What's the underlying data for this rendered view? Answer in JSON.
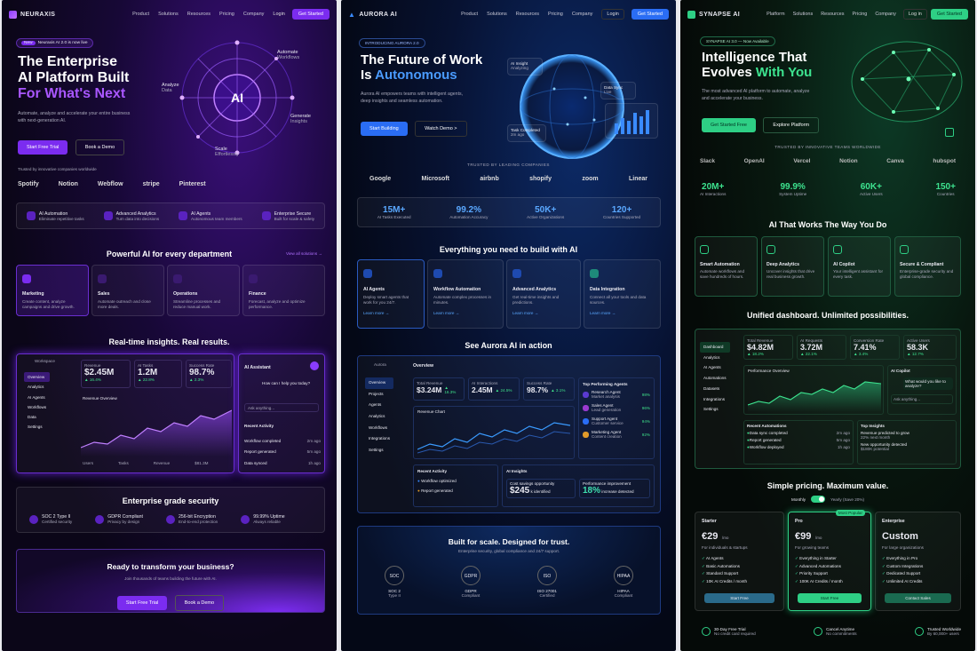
{
  "p1": {
    "brand": "NEURAXIS",
    "nav": [
      "Product",
      "Solutions",
      "Resources",
      "Pricing",
      "Company"
    ],
    "login": "Login",
    "cta": "Get Started",
    "badge_new": "New",
    "badge_text": "Neuraxis AI 2.0 is now live",
    "h1a": "The Enterprise",
    "h1b": "AI Platform Built",
    "h1c": "For What's Next",
    "sub": "Automate, analyze and accelerate your entire business with next-generation AI.",
    "btn1": "Start Free Trial",
    "btn2": "Book a Demo",
    "orbit": {
      "core": "AI",
      "analyze": "Analyze",
      "analyze_s": "Data",
      "automate": "Automate",
      "automate_s": "Workflows",
      "generate": "Generate",
      "generate_s": "Insights",
      "scale": "Scale",
      "scale_s": "Effortlessly"
    },
    "trusted": "Trusted by innovative companies worldwide",
    "logos": [
      "Spotify",
      "Notion",
      "Webflow",
      "stripe",
      "Pinterest"
    ],
    "features": [
      {
        "t": "AI Automation",
        "s": "Eliminate repetitive tasks"
      },
      {
        "t": "Advanced Analytics",
        "s": "Turn data into decisions"
      },
      {
        "t": "AI Agents",
        "s": "Autonomous team members"
      },
      {
        "t": "Enterprise Secure",
        "s": "Built for scale & safety"
      }
    ],
    "dept_title": "Powerful AI for every department",
    "view_all": "View all solutions →",
    "depts": [
      {
        "t": "Marketing",
        "s": "Create content, analyze campaigns and drive growth."
      },
      {
        "t": "Sales",
        "s": "Automate outreach and close more deals."
      },
      {
        "t": "Operations",
        "s": "Streamline processes and reduce manual work."
      },
      {
        "t": "Finance",
        "s": "Forecast, analyze and optimize performance."
      }
    ],
    "insights_title": "Real-time insights. Real results.",
    "dash": {
      "ws": "Workspace",
      "menu": [
        "Overview",
        "Analytics",
        "AI Agents",
        "Workflows",
        "Data",
        "Settings"
      ],
      "stats": [
        {
          "l": "Revenue",
          "v": "$2.45M",
          "d": "▲ 16.4%"
        },
        {
          "l": "AI Tasks",
          "v": "1.2M",
          "d": "▲ 22.8%"
        },
        {
          "l": "Success Rate",
          "v": "98.7%",
          "d": "▲ 2.3%"
        }
      ],
      "chart": "Revenue Overview",
      "foot": [
        "Users",
        "Tasks",
        "Revenue"
      ],
      "foot_v": "$81.3M"
    },
    "assistant": {
      "t": "AI Assistant",
      "q": "How can I help you today?",
      "ph": "Ask anything...",
      "recent": "Recent Activity",
      "items": [
        {
          "t": "Workflow completed",
          "time": "2m ago"
        },
        {
          "t": "Report generated",
          "time": "5m ago"
        },
        {
          "t": "Data synced",
          "time": "1h ago"
        }
      ]
    },
    "security_title": "Enterprise grade security",
    "security": [
      {
        "t": "SOC 2 Type II",
        "s": "Certified security"
      },
      {
        "t": "GDPR Compliant",
        "s": "Privacy by design"
      },
      {
        "t": "256-bit Encryption",
        "s": "End-to-end protection"
      },
      {
        "t": "99.99% Uptime",
        "s": "Always reliable"
      }
    ],
    "cta_title": "Ready to transform your business?",
    "cta_sub": "Join thousands of teams building the future with AI.",
    "cta_b1": "Start Free Trial",
    "cta_b2": "Book a Demo"
  },
  "p2": {
    "brand": "AURORA AI",
    "nav": [
      "Product",
      "Solutions",
      "Resources",
      "Pricing",
      "Company"
    ],
    "login": "Login",
    "cta": "Get Started",
    "badge": "INTRODUCING AURORA 2.0",
    "h1a": "The Future of Work",
    "h1b": "Is ",
    "h1c": "Autonomous",
    "sub": "Aurora AI empowers teams with intelligent agents, deep insights and seamless automation.",
    "btn1": "Start Building",
    "btn2": "Watch Demo >",
    "float": [
      {
        "t": "AI Insight",
        "s": "Analyzing"
      },
      {
        "t": "Data Sync",
        "s": "Live"
      },
      {
        "t": "Task Completed",
        "s": "2m ago"
      }
    ],
    "trusted": "TRUSTED BY LEADING COMPANIES",
    "logos": [
      "Google",
      "Microsoft",
      "airbnb",
      "shopify",
      "zoom",
      "Linear"
    ],
    "stats": [
      {
        "v": "15M+",
        "l": "AI Tasks Executed"
      },
      {
        "v": "99.2%",
        "l": "Automation Accuracy"
      },
      {
        "v": "50K+",
        "l": "Active Organizations"
      },
      {
        "v": "120+",
        "l": "Countries Supported"
      }
    ],
    "build_title": "Everything you need to build with AI",
    "features": [
      {
        "t": "AI Agents",
        "s": "Deploy smart agents that work for you 24/7.",
        "l": "Learn more →"
      },
      {
        "t": "Workflow Automation",
        "s": "Automate complex processes in minutes.",
        "l": "Learn more →"
      },
      {
        "t": "Advanced Analytics",
        "s": "Get real-time insights and predictions.",
        "l": "Learn more →"
      },
      {
        "t": "Data Integration",
        "s": "Connect all your tools and data sources.",
        "l": "Learn more →"
      }
    ],
    "action_title": "See Aurora AI in action",
    "dash": {
      "ws": "Aurora",
      "menu": [
        "Overview",
        "Projects",
        "Agents",
        "Analytics",
        "Workflows",
        "Integrations",
        "Settings"
      ],
      "title": "Overview",
      "stats": [
        {
          "l": "Total Revenue",
          "v": "$3.24M",
          "d": "▲ 16.3%"
        },
        {
          "l": "AI Interactions",
          "v": "2.45M",
          "d": "▲ 24.5%"
        },
        {
          "l": "Success Rate",
          "v": "98.7%",
          "d": "▲ 3.1%"
        }
      ],
      "chart": "Revenue Chart",
      "agents_t": "Top Performing Agents",
      "agents": [
        {
          "n": "Research Agent",
          "s": "Market analysis",
          "v": "98%"
        },
        {
          "n": "Sales Agent",
          "s": "Lead generation",
          "v": "96%"
        },
        {
          "n": "Support Agent",
          "s": "Customer service",
          "v": "94%"
        },
        {
          "n": "Marketing Agent",
          "s": "Content creation",
          "v": "92%"
        }
      ],
      "activity_t": "Recent Activity",
      "activity": [
        "Workflow optimized",
        "Report generated"
      ],
      "insights_t": "AI Insights",
      "ins1": "Cost savings opportunity",
      "ins1_v": "$245",
      "ins1_s": "k identified",
      "ins2": "Performance improvement",
      "ins2_v": "18%",
      "ins2_s": "increase detected"
    },
    "trust_title": "Built for scale. Designed for trust.",
    "trust_sub": "Enterprise security, global compliance and 24/7 support.",
    "certs": [
      {
        "i": "SOC",
        "t": "SOC 2",
        "s": "Type II"
      },
      {
        "i": "GDPR",
        "t": "GDPR",
        "s": "Compliant"
      },
      {
        "i": "ISO",
        "t": "ISO 27001",
        "s": "Certified"
      },
      {
        "i": "HIPAA",
        "t": "HIPAA",
        "s": "Compliant"
      }
    ]
  },
  "p3": {
    "brand": "SYNAPSE AI",
    "nav": [
      "Platform",
      "Solutions",
      "Resources",
      "Pricing",
      "Company"
    ],
    "login": "Log in",
    "cta": "Get Started",
    "badge": "SYNAPSE AI 3.0 — Now Available",
    "h1a": "Intelligence That",
    "h1b": "Evolves ",
    "h1c": "With You",
    "sub": "The most advanced AI platform to automate, analyze and accelerate your business.",
    "btn1": "Get Started Free",
    "btn2": "Explore Platform",
    "trusted": "TRUSTED BY INNOVATIVE TEAMS WORLDWIDE",
    "logos": [
      "Slack",
      "OpenAI",
      "Vercel",
      "Notion",
      "Canva",
      "hubspot"
    ],
    "stats": [
      {
        "v": "20M+",
        "l": "AI Interactions"
      },
      {
        "v": "99.9%",
        "l": "System Uptime"
      },
      {
        "v": "60K+",
        "l": "Active Users"
      },
      {
        "v": "150+",
        "l": "Countries"
      }
    ],
    "way_title": "AI That Works The Way You Do",
    "features": [
      {
        "t": "Smart Automation",
        "s": "Automate workflows and save hundreds of hours."
      },
      {
        "t": "Deep Analytics",
        "s": "Uncover insights that drive real business growth."
      },
      {
        "t": "AI Copilot",
        "s": "Your intelligent assistant for every task."
      },
      {
        "t": "Secure & Compliant",
        "s": "Enterprise-grade security and global compliance."
      }
    ],
    "dash_title": "Unified dashboard. Unlimited possibilities.",
    "dash": {
      "menu": [
        "Dashboard",
        "Analytics",
        "AI Agents",
        "Automations",
        "Datasets",
        "Integrations",
        "Settings"
      ],
      "stats": [
        {
          "l": "Total Revenue",
          "v": "$4.82M",
          "d": "▲ 18.2%"
        },
        {
          "l": "AI Requests",
          "v": "3.72M",
          "d": "▲ 22.1%"
        },
        {
          "l": "Conversion Rate",
          "v": "7.41%",
          "d": "▲ 3.4%"
        },
        {
          "l": "Active Users",
          "v": "58.3K",
          "d": "▲ 12.7%"
        }
      ],
      "perf": "Performance Overview",
      "copilot": "AI Copilot",
      "copilot_q": "What would you like to analyze?",
      "copilot_ph": "Ask anything...",
      "recent": "Recent Automations",
      "recent_items": [
        {
          "t": "Data sync completed",
          "time": "2m ago"
        },
        {
          "t": "Report generated",
          "time": "5m ago"
        },
        {
          "t": "Workflow deployed",
          "time": "1h ago"
        }
      ],
      "top": "Top Insights",
      "top_items": [
        {
          "t": "Revenue predicted to grow",
          "s": "22% next month"
        },
        {
          "t": "New opportunity detected",
          "s": "$180K potential"
        }
      ]
    },
    "pricing_title": "Simple pricing. Maximum value.",
    "monthly": "Monthly",
    "yearly": "Yearly (Save 20%)",
    "plans": [
      {
        "n": "Starter",
        "p": "€29",
        "u": "/mo",
        "s": "For individuals & startups",
        "f": [
          "AI Agents",
          "Basic Automations",
          "Standard Support",
          "10K AI Credits / month"
        ],
        "b": "Start Free"
      },
      {
        "n": "Pro",
        "p": "€99",
        "u": "/mo",
        "s": "For growing teams",
        "f": [
          "Everything in Starter",
          "Advanced Automations",
          "Priority Support",
          "100K AI Credits / month"
        ],
        "b": "Start Free",
        "tag": "Most Popular"
      },
      {
        "n": "Enterprise",
        "p": "Custom",
        "u": "",
        "s": "For large organizations",
        "f": [
          "Everything in Pro",
          "Custom Integrations",
          "Dedicated Support",
          "Unlimited AI Credits"
        ],
        "b": "Contact Sales"
      }
    ],
    "footer": [
      {
        "t": "30-Day Free Trial",
        "s": "No credit card required"
      },
      {
        "t": "Cancel Anytime",
        "s": "No commitments"
      },
      {
        "t": "Trusted Worldwide",
        "s": "By 60,000+ users"
      }
    ]
  }
}
